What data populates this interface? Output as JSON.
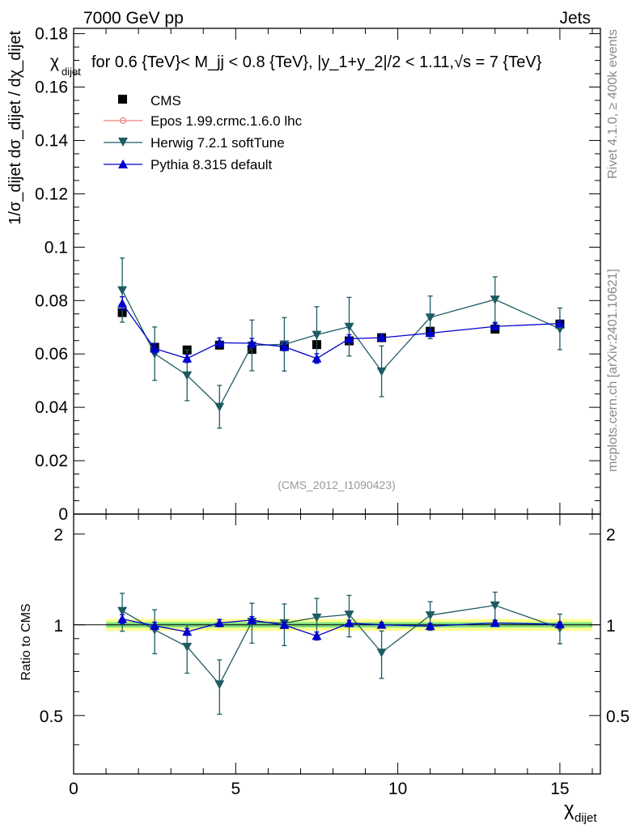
{
  "header": {
    "left": "7000 GeV pp",
    "right": "Jets"
  },
  "chart_data": {
    "type": "line",
    "title": "for 0.6 {TeV}< M_jj < 0.8 {TeV}, |y_1+y_2|/2 < 1.11,√s = 7 {TeV}",
    "title_prefix": "χ",
    "title_prefix_sub": "dijet",
    "watermark": "(CMS_2012_I1090423)",
    "side_label_top": "Rivet 4.1.0, ≥ 400k events",
    "side_label_bottom": "mcplots.cern.ch [arXiv:2401.10621]",
    "xlabel": "χ",
    "xlabel_sub": "dijet",
    "ylabel": "1/σ_dijet dσ_dijet / dχ_dijet",
    "ratio_ylabel": "Ratio to CMS",
    "xlim": [
      0,
      16.25
    ],
    "ylim": [
      0,
      0.182
    ],
    "ratio_ylim": [
      0.32,
      2.33
    ],
    "x_ticks": [
      0,
      5,
      10,
      15
    ],
    "y_ticks": [
      0,
      0.02,
      0.04,
      0.06,
      0.08,
      0.1,
      0.12,
      0.14,
      0.16,
      0.18
    ],
    "y_tick_labels": [
      "0",
      "0.02",
      "0.04",
      "0.06",
      "0.08",
      "0.1",
      "0.12",
      "0.14",
      "0.16",
      "0.18"
    ],
    "ratio_ticks": [
      0.5,
      1,
      2
    ],
    "ratio_tick_labels": [
      "0.5",
      "1",
      "2"
    ],
    "bins": [
      [
        1,
        2
      ],
      [
        2,
        3
      ],
      [
        3,
        4
      ],
      [
        4,
        5
      ],
      [
        5,
        6
      ],
      [
        6,
        7
      ],
      [
        7,
        8
      ],
      [
        8,
        9
      ],
      [
        9,
        10
      ],
      [
        10,
        12
      ],
      [
        12,
        14
      ],
      [
        14,
        16
      ]
    ],
    "x": [
      1.5,
      2.5,
      3.5,
      4.5,
      5.5,
      6.5,
      7.5,
      8.5,
      9.5,
      11,
      13,
      15
    ],
    "legend": [
      {
        "name": "CMS",
        "color": "#000000",
        "marker": "square"
      },
      {
        "name": "Epos 1.99.crmc.1.6.0 lhc",
        "color": "#f08080",
        "marker": "open-circle"
      },
      {
        "name": "Herwig 7.2.1 softTune",
        "color": "#1e5b63",
        "marker": "triangle-down"
      },
      {
        "name": "Pythia 8.315 default",
        "color": "#0000cc",
        "marker": "triangle-up"
      }
    ],
    "series": [
      {
        "name": "CMS",
        "values": [
          0.0755,
          0.0625,
          0.0615,
          0.0633,
          0.0617,
          0.0628,
          0.0635,
          0.0649,
          0.0661,
          0.0685,
          0.0693,
          0.0712
        ],
        "errors": [
          0.001,
          0.0008,
          0.0008,
          0.0008,
          0.0008,
          0.0008,
          0.0008,
          0.0008,
          0.0008,
          0.0008,
          0.0008,
          0.0008
        ]
      },
      {
        "name": "Herwig 7.2.1 softTune",
        "values": [
          0.0839,
          0.0601,
          0.052,
          0.0402,
          0.0632,
          0.0636,
          0.0672,
          0.0702,
          0.0535,
          0.0737,
          0.0804,
          0.0694
        ],
        "errors": [
          0.012,
          0.01,
          0.0095,
          0.008,
          0.0095,
          0.01,
          0.0105,
          0.011,
          0.0095,
          0.008,
          0.0085,
          0.0078
        ]
      },
      {
        "name": "Pythia 8.315 default",
        "values": [
          0.0789,
          0.062,
          0.0583,
          0.0642,
          0.064,
          0.0627,
          0.0583,
          0.0657,
          0.0661,
          0.0678,
          0.0703,
          0.0714
        ],
        "errors": [
          0.0025,
          0.0018,
          0.0015,
          0.0018,
          0.0018,
          0.0015,
          0.0018,
          0.0015,
          0.0012,
          0.0013,
          0.0012,
          0.0012
        ]
      }
    ],
    "ratio_series": [
      {
        "name": "Herwig 7.2.1 softTune",
        "values": [
          1.112,
          0.962,
          0.846,
          0.635,
          1.024,
          1.013,
          1.058,
          1.082,
          0.809,
          1.076,
          1.16,
          0.975
        ],
        "errors": [
          0.16,
          0.16,
          0.155,
          0.13,
          0.155,
          0.16,
          0.165,
          0.17,
          0.145,
          0.117,
          0.123,
          0.11
        ]
      },
      {
        "name": "Pythia 8.315 default",
        "values": [
          1.045,
          0.992,
          0.948,
          1.014,
          1.037,
          0.998,
          0.918,
          1.012,
          1.0,
          0.99,
          1.014,
          1.003
        ],
        "errors": [
          0.035,
          0.028,
          0.025,
          0.028,
          0.028,
          0.024,
          0.028,
          0.023,
          0.018,
          0.019,
          0.017,
          0.017
        ]
      }
    ],
    "ratio_band_inner": 0.02,
    "ratio_band_outer": 0.045,
    "colors": {
      "band_inner": "#7fe07f",
      "band_outer": "#ffff90"
    }
  }
}
